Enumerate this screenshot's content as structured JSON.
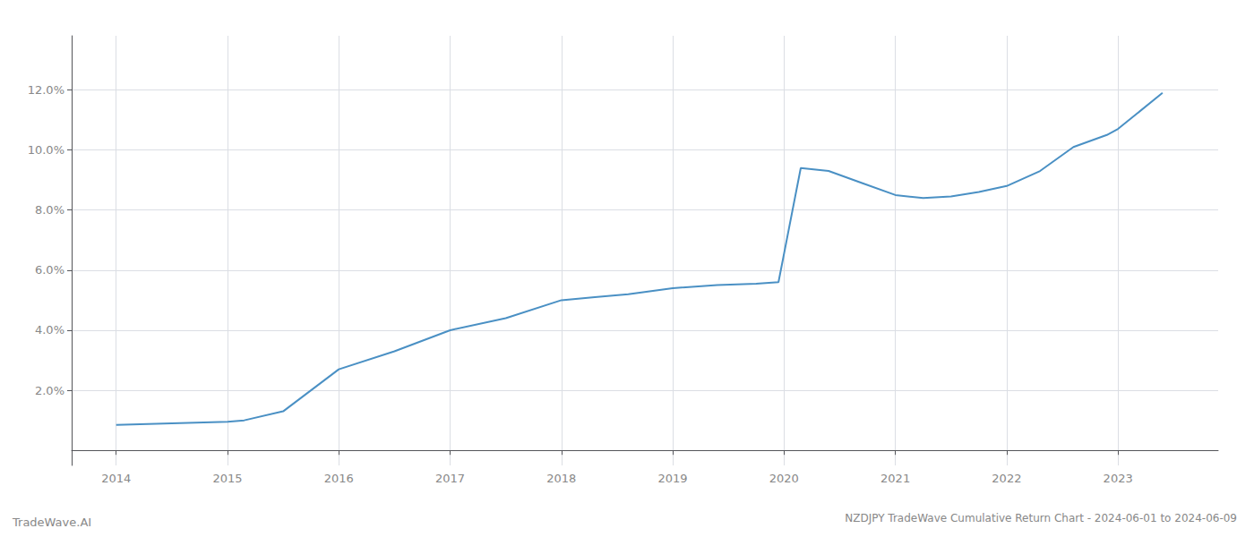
{
  "chart_data": {
    "type": "line",
    "title": "NZDJPY TradeWave Cumulative Return Chart - 2024-06-01 to 2024-06-09",
    "annotations": [
      "TradeWave.AI"
    ],
    "x": [
      2014.0,
      2014.5,
      2015.0,
      2015.15,
      2015.5,
      2016.0,
      2016.5,
      2017.0,
      2017.5,
      2018.0,
      2018.3,
      2018.6,
      2019.0,
      2019.4,
      2019.75,
      2019.95,
      2020.15,
      2020.4,
      2020.7,
      2021.0,
      2021.25,
      2021.5,
      2021.75,
      2022.0,
      2022.3,
      2022.6,
      2022.9,
      2023.0,
      2023.4
    ],
    "values": [
      0.0085,
      0.009,
      0.0095,
      0.01,
      0.013,
      0.027,
      0.033,
      0.04,
      0.044,
      0.05,
      0.051,
      0.052,
      0.054,
      0.055,
      0.0555,
      0.056,
      0.094,
      0.093,
      0.089,
      0.085,
      0.084,
      0.0845,
      0.086,
      0.088,
      0.093,
      0.101,
      0.105,
      0.107,
      0.119
    ],
    "color": "#4a90c4",
    "xlim": [
      2013.6,
      2023.9
    ],
    "ylim": [
      -0.005,
      0.138
    ],
    "xticks": [
      2014,
      2015,
      2016,
      2017,
      2018,
      2019,
      2020,
      2021,
      2022,
      2023
    ],
    "yticks": [
      {
        "value": 0.02,
        "label": "2.0%"
      },
      {
        "value": 0.04,
        "label": "4.0%"
      },
      {
        "value": 0.06,
        "label": "6.0%"
      },
      {
        "value": 0.08,
        "label": "8.0%"
      },
      {
        "value": 0.1,
        "label": "10.0%"
      },
      {
        "value": 0.12,
        "label": "12.0%"
      }
    ],
    "grid": true
  }
}
